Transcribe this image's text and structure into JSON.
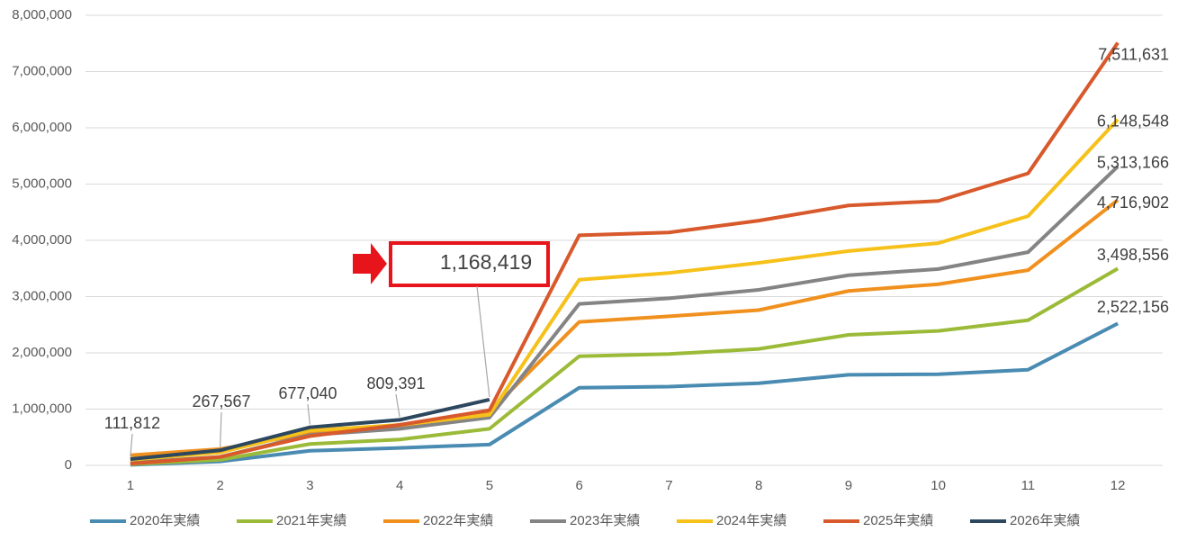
{
  "chart_data": {
    "type": "line",
    "categories": [
      "1",
      "2",
      "3",
      "4",
      "5",
      "6",
      "7",
      "8",
      "9",
      "10",
      "11",
      "12"
    ],
    "series": [
      {
        "name": "2020年実績",
        "color": "#4a8bb2",
        "values": [
          10000,
          70000,
          260000,
          310000,
          370000,
          1380000,
          1400000,
          1460000,
          1610000,
          1620000,
          1700000,
          2522156
        ],
        "value_labels": [
          null,
          null,
          null,
          null,
          null,
          null,
          null,
          null,
          null,
          null,
          null,
          "2,522,156"
        ]
      },
      {
        "name": "2021年実績",
        "color": "#9bbb38",
        "values": [
          20000,
          100000,
          380000,
          460000,
          650000,
          1940000,
          1980000,
          2070000,
          2320000,
          2390000,
          2580000,
          3498556
        ],
        "value_labels": [
          null,
          null,
          null,
          null,
          null,
          null,
          null,
          null,
          null,
          null,
          null,
          "3,498,556"
        ]
      },
      {
        "name": "2022年実績",
        "color": "#f0901e",
        "values": [
          180000,
          290000,
          570000,
          700000,
          950000,
          2550000,
          2650000,
          2760000,
          3100000,
          3220000,
          3470000,
          4716902
        ],
        "value_labels": [
          null,
          null,
          null,
          null,
          null,
          null,
          null,
          null,
          null,
          null,
          null,
          "4,716,902"
        ]
      },
      {
        "name": "2023年実績",
        "color": "#848484",
        "values": [
          50000,
          150000,
          540000,
          650000,
          850000,
          2870000,
          2970000,
          3120000,
          3380000,
          3490000,
          3790000,
          5313166
        ],
        "value_labels": [
          null,
          null,
          null,
          null,
          null,
          null,
          null,
          null,
          null,
          null,
          null,
          "5,313,166"
        ]
      },
      {
        "name": "2024年実績",
        "color": "#f6c11a",
        "values": [
          100000,
          230000,
          620000,
          720000,
          900000,
          3300000,
          3420000,
          3600000,
          3810000,
          3950000,
          4430000,
          6148548
        ],
        "value_labels": [
          null,
          null,
          null,
          null,
          null,
          null,
          null,
          null,
          null,
          null,
          null,
          "6,148,548"
        ]
      },
      {
        "name": "2025年実績",
        "color": "#d8592b",
        "values": [
          30000,
          150000,
          520000,
          720000,
          980000,
          4090000,
          4140000,
          4350000,
          4620000,
          4700000,
          5190000,
          7511631
        ],
        "value_labels": [
          null,
          null,
          null,
          null,
          null,
          null,
          null,
          null,
          null,
          null,
          null,
          "7,511,631"
        ]
      },
      {
        "name": "2026年実績",
        "color": "#2c475e",
        "values": [
          111812,
          267567,
          677040,
          809391,
          1168419,
          null,
          null,
          null,
          null,
          null,
          null,
          null
        ],
        "value_labels": [
          "111,812",
          "267,567",
          "677,040",
          "809,391",
          "1,168,419",
          null,
          null,
          null,
          null,
          null,
          null,
          null
        ]
      }
    ],
    "ylim": [
      0,
      8000000
    ],
    "yticks": [
      0,
      {
        "value": 1000000,
        "label": "1,000,000"
      },
      {
        "value": 2000000,
        "label": "2,000,000"
      },
      {
        "value": 3000000,
        "label": "3,000,000"
      },
      {
        "value": 4000000,
        "label": "4,000,000"
      },
      {
        "value": 5000000,
        "label": "5,000,000"
      },
      {
        "value": 6000000,
        "label": "6,000,000"
      },
      {
        "value": 7000000,
        "label": "7,000,000"
      },
      {
        "value": 8000000,
        "label": "8,000,000"
      }
    ],
    "grid": true,
    "legend": "bottom"
  }
}
